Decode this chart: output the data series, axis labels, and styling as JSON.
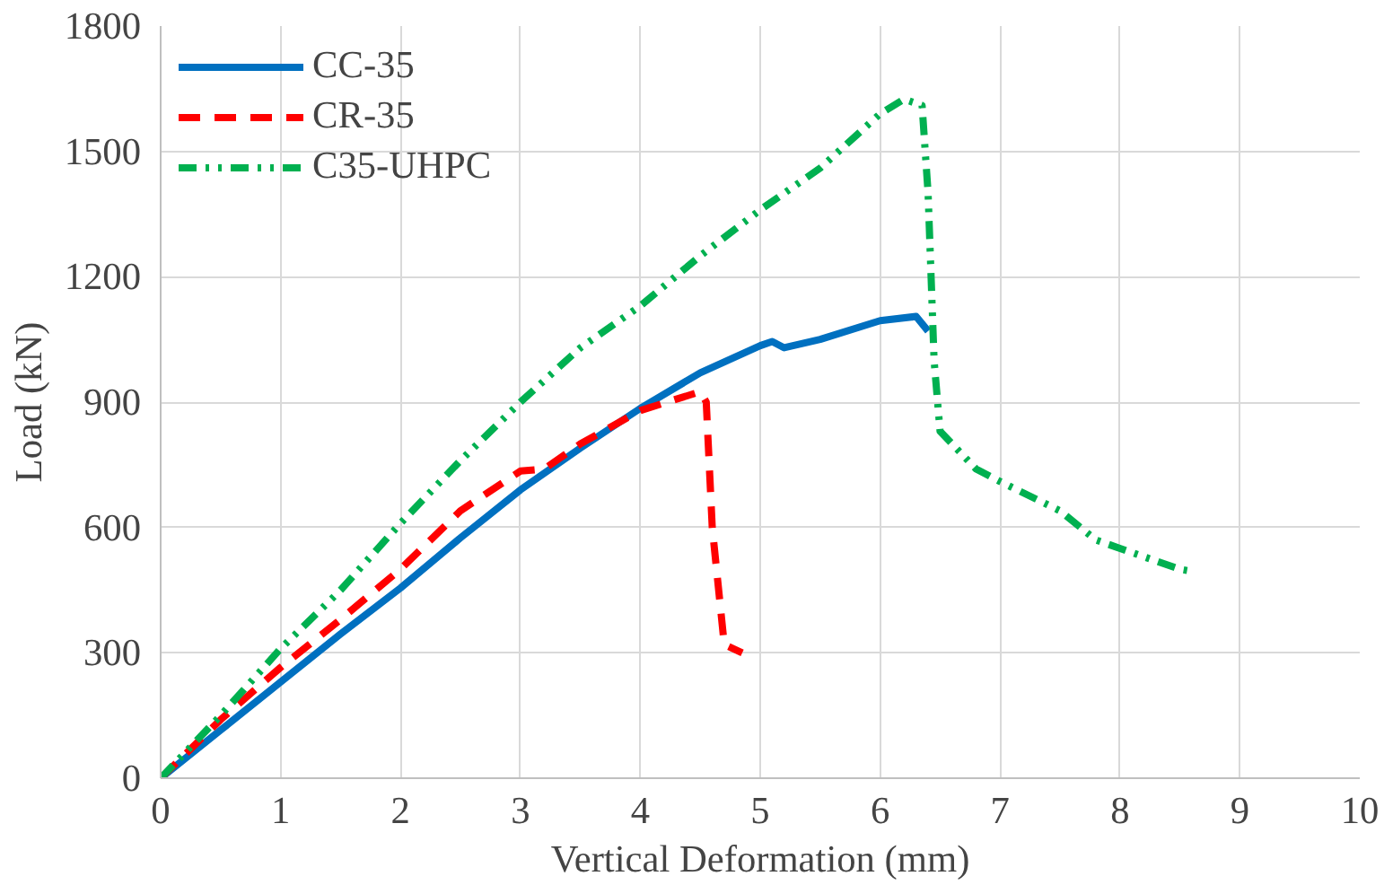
{
  "chart_data": {
    "type": "line",
    "xlabel": "Vertical Deformation (mm)",
    "ylabel": "Load (kN)",
    "xlim": [
      0,
      10
    ],
    "xticks": [
      0,
      1,
      2,
      3,
      4,
      5,
      6,
      7,
      8,
      9,
      10
    ],
    "ylim": [
      0,
      1800
    ],
    "yticks": [
      0,
      300,
      600,
      900,
      1200,
      1500,
      1800
    ],
    "grid": true,
    "legend": "top left",
    "marker": "none",
    "series": [
      {
        "name": "CC-35",
        "color": "#0070c0",
        "line_style": "solid",
        "x": [
          0,
          0.5,
          1,
          1.5,
          2,
          2.5,
          3,
          3.5,
          4,
          4.5,
          5,
          5.1,
          5.2,
          5.5,
          6,
          6.3,
          6.4
        ],
        "values": [
          0,
          115,
          230,
          345,
          455,
          575,
          690,
          790,
          885,
          970,
          1035,
          1045,
          1030,
          1050,
          1095,
          1105,
          1070
        ]
      },
      {
        "name": "CR-35",
        "color": "#ff0000",
        "line_style": "dashed",
        "x": [
          0,
          0.5,
          1,
          1.5,
          2,
          2.5,
          3,
          3.2,
          3.5,
          4,
          4.5,
          4.55,
          4.6,
          4.7,
          4.85
        ],
        "values": [
          0,
          140,
          265,
          380,
          500,
          640,
          735,
          740,
          800,
          880,
          925,
          900,
          600,
          320,
          300
        ]
      },
      {
        "name": "C35-UHPC",
        "color": "#00b050",
        "line_style": "dashdot",
        "x": [
          0,
          0.5,
          1,
          1.5,
          2,
          2.5,
          3,
          3.5,
          4,
          4.5,
          5,
          5.5,
          6,
          6.2,
          6.35,
          6.4,
          6.45,
          6.5,
          6.8,
          7,
          7.5,
          7.8,
          8,
          8.5,
          8.6
        ],
        "values": [
          0,
          150,
          310,
          450,
          610,
          760,
          900,
          1030,
          1130,
          1250,
          1360,
          1460,
          1590,
          1625,
          1610,
          1400,
          1000,
          830,
          740,
          710,
          640,
          570,
          550,
          500,
          495
        ]
      }
    ]
  }
}
